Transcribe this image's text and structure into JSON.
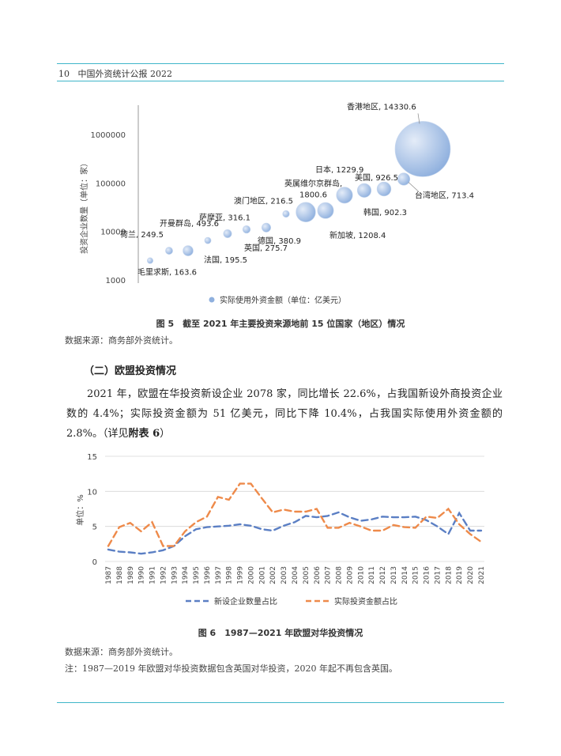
{
  "header": {
    "page_number": "10",
    "title": "中国外资统计公报 2022"
  },
  "figure5": {
    "caption": "图 5　截至 2021 年主要投资来源地前 15 位国家（地区）情况",
    "source": "数据来源：商务部外资统计。",
    "chart_data": {
      "type": "scatter",
      "bubble": true,
      "ylabel": "投资企业数量（单位：家）",
      "y_scale": "log",
      "y_ticks": [
        "1000",
        "10000",
        "100000",
        "1000000"
      ],
      "legend": "实际使用外资金额（单位：亿美元）",
      "legend_position": "bottom",
      "bubble_color": "#8fb0de",
      "points": [
        {
          "name": "毛里求斯",
          "value": "163.6",
          "label": "毛里求斯, 163.6",
          "y": 2500
        },
        {
          "name": "荷兰",
          "value": "249.5",
          "label": "荷兰, 249.5",
          "y": 4000
        },
        {
          "name": "开曼群岛",
          "value": "493.6",
          "label": "开曼群岛, 493.6",
          "y": 4000
        },
        {
          "name": "法国",
          "value": "195.5",
          "label": "法国, 195.5",
          "y": 6500
        },
        {
          "name": "萨摩亚",
          "value": "316.1",
          "label": "萨摩亚, 316.1",
          "y": 9000
        },
        {
          "name": "英国",
          "value": "275.7",
          "label": "英国, 275.7",
          "y": 11000
        },
        {
          "name": "德国",
          "value": "380.9",
          "label": "德国, 380.9",
          "y": 12000
        },
        {
          "name": "澳门地区",
          "value": "216.5",
          "label": "澳门地区, 216.5",
          "y": 23000
        },
        {
          "name": "英属维尔京群岛",
          "value": "1800.6",
          "label_line1": "英属维尔京群岛,",
          "label_line2": "1800.6",
          "y": 25000
        },
        {
          "name": "新加坡",
          "value": "1208.4",
          "label": "新加坡, 1208.4",
          "y": 27000
        },
        {
          "name": "日本",
          "value": "1229.9",
          "label": "日本, 1229.9",
          "y": 56000
        },
        {
          "name": "韩国",
          "value": "902.3",
          "label": "韩国, 902.3",
          "y": 70000
        },
        {
          "name": "美国",
          "value": "926.5",
          "label": "美国, 926.5",
          "y": 75000
        },
        {
          "name": "台湾地区",
          "value": "713.4",
          "label": "台湾地区, 713.4",
          "y": 120000
        },
        {
          "name": "香港地区",
          "value": "14330.6",
          "label": "香港地区, 14330.6",
          "y": 500000
        }
      ]
    }
  },
  "section": {
    "heading": "（二）欧盟投资情况",
    "paragraph": "2021 年，欧盟在华投资新设企业 2078 家，同比增长 22.6%，占我国新设外商投资企业数的 4.4%；实际投资金额为 51 亿美元，同比下降 10.4%，占我国实际使用外资金额的 2.8%。",
    "ref_open": "（详见",
    "ref_bold": "附表 6",
    "ref_close": "）"
  },
  "figure6": {
    "caption": "图 6　1987—2021 年欧盟对华投资情况",
    "source": "数据来源：商务部外资统计。",
    "note": "注：1987—2019 年欧盟对华投资数据包含英国对华投资，2020 年起不再包含英国。",
    "chart_data": {
      "type": "line",
      "ylabel": "单位：%",
      "ylim": [
        0,
        15
      ],
      "y_ticks": [
        "0",
        "5",
        "10",
        "15"
      ],
      "x": [
        "1987",
        "1988",
        "1989",
        "1990",
        "1991",
        "1992",
        "1993",
        "1994",
        "1995",
        "1996",
        "1997",
        "1998",
        "1999",
        "2000",
        "2001",
        "2002",
        "2003",
        "2004",
        "2005",
        "2006",
        "2007",
        "2008",
        "2009",
        "2010",
        "2011",
        "2012",
        "2013",
        "2014",
        "2015",
        "2016",
        "2017",
        "2018",
        "2019",
        "2020",
        "2021"
      ],
      "legend_position": "bottom",
      "series": [
        {
          "name": "新设企业数量占比",
          "color": "#5b7fc4",
          "dash": "8,5",
          "values": [
            1.7,
            1.4,
            1.3,
            1.1,
            1.3,
            1.6,
            2.2,
            3.6,
            4.6,
            4.9,
            5.0,
            5.1,
            5.3,
            5.1,
            4.6,
            4.4,
            5.1,
            5.6,
            6.5,
            6.3,
            6.5,
            7.0,
            6.3,
            5.8,
            6.0,
            6.4,
            6.3,
            6.3,
            6.4,
            5.9,
            5.0,
            3.9,
            6.9,
            4.4,
            4.4
          ]
        },
        {
          "name": "实际投资金额占比",
          "color": "#ee8a4a",
          "dash": "8,5",
          "values": [
            2.2,
            4.9,
            5.5,
            4.3,
            5.6,
            2.2,
            2.2,
            4.3,
            5.6,
            6.4,
            9.2,
            8.8,
            11.1,
            11.1,
            9.0,
            7.0,
            7.4,
            7.1,
            7.1,
            7.5,
            4.8,
            4.8,
            5.5,
            5.0,
            4.4,
            4.4,
            5.2,
            4.9,
            4.8,
            6.4,
            6.2,
            7.5,
            5.3,
            3.9,
            2.8
          ]
        }
      ]
    }
  }
}
